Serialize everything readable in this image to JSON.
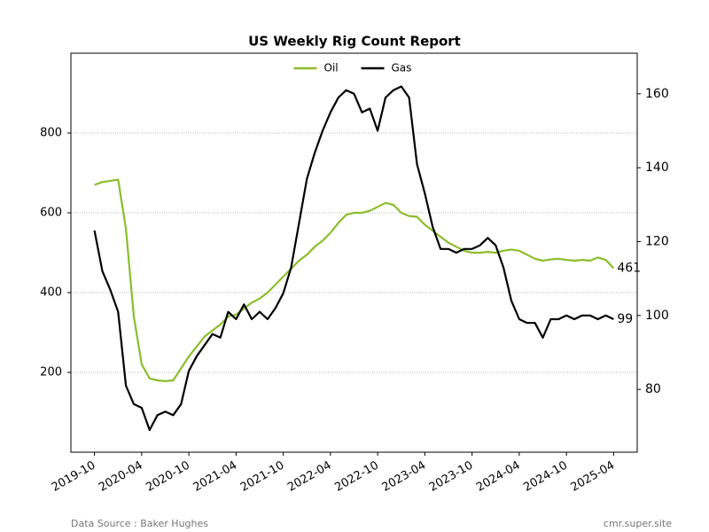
{
  "chart_data": {
    "type": "line",
    "title": "US Weekly Rig Count Report",
    "x": [
      "2019-10",
      "2019-11",
      "2019-12",
      "2020-01",
      "2020-02",
      "2020-03",
      "2020-04",
      "2020-05",
      "2020-06",
      "2020-07",
      "2020-08",
      "2020-09",
      "2020-10",
      "2020-11",
      "2020-12",
      "2021-01",
      "2021-02",
      "2021-03",
      "2021-04",
      "2021-05",
      "2021-06",
      "2021-07",
      "2021-08",
      "2021-09",
      "2021-10",
      "2021-11",
      "2021-12",
      "2022-01",
      "2022-02",
      "2022-03",
      "2022-04",
      "2022-05",
      "2022-06",
      "2022-07",
      "2022-08",
      "2022-09",
      "2022-10",
      "2022-11",
      "2022-12",
      "2023-01",
      "2023-02",
      "2023-03",
      "2023-04",
      "2023-05",
      "2023-06",
      "2023-07",
      "2023-08",
      "2023-09",
      "2023-10",
      "2023-11",
      "2023-12",
      "2024-01",
      "2024-02",
      "2024-03",
      "2024-04",
      "2024-05",
      "2024-06",
      "2024-07",
      "2024-08",
      "2024-09",
      "2024-10",
      "2024-11",
      "2024-12",
      "2025-01",
      "2025-02",
      "2025-03",
      "2025-04"
    ],
    "series": [
      {
        "name": "Oil",
        "color": "#8cbd2c",
        "values": [
          670,
          677,
          680,
          683,
          560,
          340,
          220,
          185,
          180,
          178,
          180,
          210,
          240,
          265,
          290,
          305,
          320,
          340,
          345,
          360,
          375,
          385,
          400,
          420,
          440,
          460,
          480,
          495,
          515,
          530,
          550,
          575,
          595,
          600,
          600,
          605,
          615,
          625,
          620,
          600,
          592,
          590,
          570,
          555,
          540,
          525,
          515,
          505,
          500,
          500,
          502,
          500,
          505,
          508,
          505,
          495,
          485,
          480,
          483,
          485,
          482,
          480,
          482,
          480,
          488,
          482,
          461
        ]
      },
      {
        "name": "Gas",
        "color": "#000000",
        "axis": "y2",
        "values": [
          123,
          112,
          107,
          101,
          81,
          76,
          75,
          69,
          73,
          74,
          73,
          76,
          85,
          89,
          92,
          95,
          94,
          101,
          99,
          103,
          99,
          101,
          99,
          102,
          106,
          113,
          125,
          137,
          144,
          150,
          155,
          159,
          161,
          160,
          155,
          156,
          150,
          159,
          161,
          162,
          159,
          141,
          133,
          124,
          118,
          118,
          117,
          118,
          118,
          119,
          121,
          119,
          113,
          104,
          99,
          98,
          98,
          94,
          99,
          99,
          100,
          99,
          100,
          100,
          99,
          100,
          99
        ]
      }
    ],
    "xlim": [
      "2019-07",
      "2025-07"
    ],
    "xticks": [
      "2019-10",
      "2020-04",
      "2020-10",
      "2021-04",
      "2021-10",
      "2022-04",
      "2022-10",
      "2023-04",
      "2023-10",
      "2024-04",
      "2024-10",
      "2025-04"
    ],
    "ylim": [
      0,
      1000
    ],
    "yticks": [
      200,
      400,
      600,
      800
    ],
    "y2lim": [
      63,
      171
    ],
    "y2ticks": [
      80,
      100,
      120,
      140,
      160
    ],
    "grid": true,
    "legend": "upper center"
  },
  "footer": {
    "source": "Data Source : Baker Hughes",
    "site": "cmr.super.site"
  }
}
